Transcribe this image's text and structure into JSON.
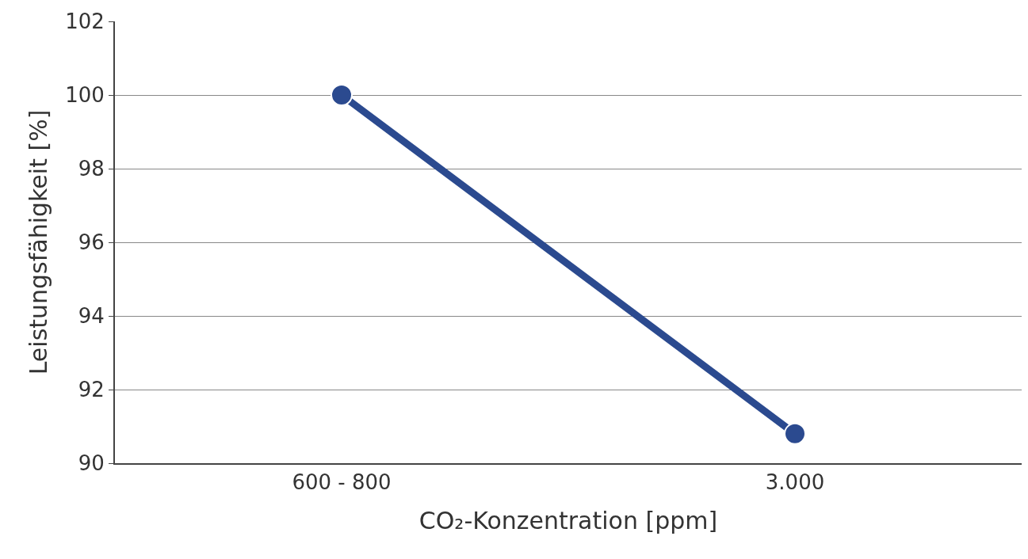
{
  "chart_data": {
    "type": "line",
    "categories": [
      "600 - 800",
      "3.000"
    ],
    "series": [
      {
        "color": "#2b4a8f",
        "values": [
          100,
          90.8
        ]
      }
    ],
    "xlabel": "CO₂-Konzentration [ppm]",
    "ylabel": "Leistungsfähigkeit [%]",
    "ylim": [
      90,
      102
    ],
    "yticks": [
      90,
      92,
      94,
      96,
      98,
      100,
      102
    ],
    "grid": "y",
    "marker": "circle",
    "line_style": "solid",
    "legend": false
  }
}
